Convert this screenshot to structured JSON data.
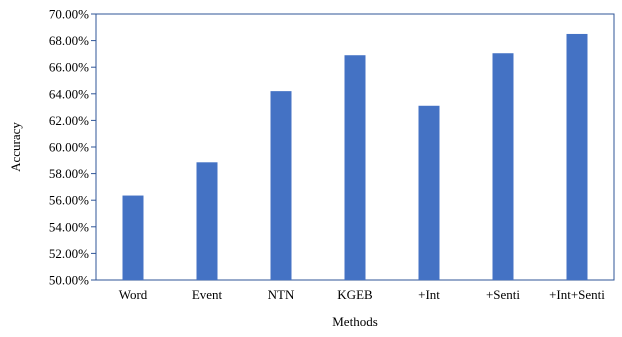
{
  "chart_data": {
    "type": "bar",
    "title": "",
    "xlabel": "Methods",
    "ylabel": "Accuracy",
    "categories": [
      "Word",
      "Event",
      "NTN",
      "KGEB",
      "+Int",
      "+Senti",
      "+Int+Senti"
    ],
    "values": [
      56.35,
      58.85,
      64.2,
      66.9,
      63.1,
      67.05,
      68.5
    ],
    "ylim": [
      50,
      70
    ],
    "yticks": [
      50,
      52,
      54,
      56,
      58,
      60,
      62,
      64,
      66,
      68,
      70
    ],
    "ytick_labels": [
      "50.00%",
      "52.00%",
      "54.00%",
      "56.00%",
      "58.00%",
      "60.00%",
      "62.00%",
      "64.00%",
      "66.00%",
      "68.00%",
      "70.00%"
    ],
    "value_format": "percent",
    "grid": false,
    "legend": "none",
    "bar_color": "#4472C4",
    "frame_color": "#2F5597"
  }
}
